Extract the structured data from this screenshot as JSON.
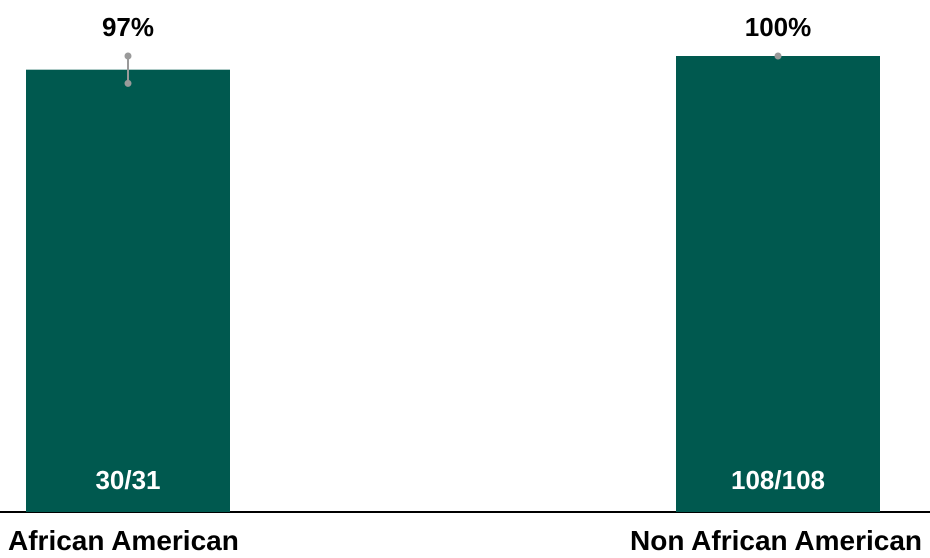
{
  "chart_data": {
    "type": "bar",
    "title": "",
    "xlabel": "",
    "ylabel": "",
    "ylim": [
      0,
      100
    ],
    "grid": false,
    "legend": "none",
    "categories": [
      "African American",
      "Non African American"
    ],
    "values": [
      97,
      100
    ],
    "value_labels": [
      "97%",
      "100%"
    ],
    "count_labels": [
      "30/31",
      "108/108"
    ],
    "error_bars": [
      {
        "low": 94,
        "high": 100
      },
      {
        "low": 100,
        "high": 100
      }
    ],
    "colors": {
      "bar": "#00594F",
      "error_bar": "#9a9a9a",
      "axis": "#000000"
    }
  }
}
